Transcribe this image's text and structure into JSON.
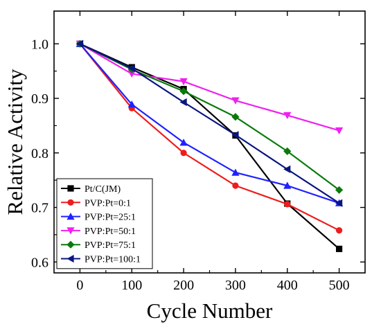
{
  "chart_data": {
    "type": "line",
    "xlabel": "Cycle Number",
    "ylabel": "Relative Activity",
    "xlim": [
      -50,
      550
    ],
    "ylim": [
      0.58,
      1.06
    ],
    "xticks": [
      0,
      100,
      200,
      300,
      400,
      500
    ],
    "yticks": [
      0.6,
      0.7,
      0.8,
      0.9,
      1.0
    ],
    "x": [
      0,
      100,
      200,
      300,
      400,
      500
    ],
    "grid": false,
    "legend_position": "bottom-left",
    "series": [
      {
        "name": "Pt/C(JM)",
        "color": "#000000",
        "marker": "square",
        "values": [
          1.0,
          0.957,
          0.917,
          0.832,
          0.707,
          0.624
        ]
      },
      {
        "name": "PVP:Pt=0:1",
        "color": "#ee1c1c",
        "marker": "circle",
        "values": [
          1.0,
          0.882,
          0.8,
          0.74,
          0.706,
          0.658
        ]
      },
      {
        "name": "PVP:Pt=25:1",
        "color": "#1e22ff",
        "marker": "triangle-up",
        "values": [
          1.0,
          0.889,
          0.819,
          0.764,
          0.74,
          0.708
        ]
      },
      {
        "name": "PVP:Pt=50:1",
        "color": "#f020f0",
        "marker": "triangle-down",
        "values": [
          1.0,
          0.945,
          0.931,
          0.896,
          0.869,
          0.841
        ]
      },
      {
        "name": "PVP:Pt=75:1",
        "color": "#0b7a0b",
        "marker": "diamond",
        "values": [
          1.0,
          0.953,
          0.913,
          0.866,
          0.803,
          0.732
        ]
      },
      {
        "name": "PVP:Pt=100:1",
        "color": "#0a1580",
        "marker": "triangle-left",
        "values": [
          1.0,
          0.955,
          0.893,
          0.833,
          0.77,
          0.708
        ]
      }
    ]
  }
}
